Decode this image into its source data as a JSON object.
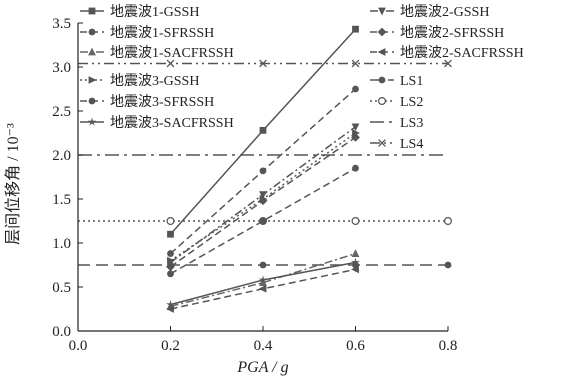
{
  "chart_data": {
    "type": "line",
    "xlabel": "PGA / g",
    "ylabel": "层间位移角 / 10⁻³",
    "xlim": [
      0.0,
      0.8
    ],
    "ylim": [
      0.0,
      3.5
    ],
    "xticks": [
      "0.0",
      "0.2",
      "0.4",
      "0.6",
      "0.8"
    ],
    "yticks": [
      "0.0",
      "0.5",
      "1.0",
      "1.5",
      "2.0",
      "2.5",
      "3.0",
      "3.5"
    ],
    "grid": false,
    "legend_position": "top",
    "series": [
      {
        "name": "地震波1-GSSH",
        "x": [
          0.2,
          0.4,
          0.6
        ],
        "y": [
          1.1,
          2.28,
          3.43
        ],
        "color": "#555555",
        "dash": "solid",
        "marker": "square"
      },
      {
        "name": "地震波1-SFRSSH",
        "x": [
          0.2,
          0.4,
          0.6
        ],
        "y": [
          0.88,
          1.82,
          2.75
        ],
        "color": "#555555",
        "dash": "dash",
        "marker": "circle"
      },
      {
        "name": "地震波1-SACFRSSH",
        "x": [
          0.2,
          0.4,
          0.6
        ],
        "y": [
          0.28,
          0.55,
          0.88
        ],
        "color": "#666666",
        "dash": "dashdot",
        "marker": "triangle"
      },
      {
        "name": "地震波2-GSSH",
        "x": [
          0.2,
          0.4,
          0.6
        ],
        "y": [
          0.78,
          1.55,
          2.32
        ],
        "color": "#555555",
        "dash": "dashdot",
        "marker": "triangle-down"
      },
      {
        "name": "地震波2-SFRSSH",
        "x": [
          0.2,
          0.4,
          0.6
        ],
        "y": [
          0.73,
          1.48,
          2.2
        ],
        "color": "#555555",
        "dash": "dash",
        "marker": "diamond"
      },
      {
        "name": "地震波2-SACFRSSH",
        "x": [
          0.2,
          0.4,
          0.6
        ],
        "y": [
          0.25,
          0.48,
          0.7
        ],
        "color": "#555555",
        "dash": "dash",
        "marker": "triangle-left"
      },
      {
        "name": "地震波3-GSSH",
        "x": [
          0.2,
          0.4,
          0.6
        ],
        "y": [
          0.8,
          1.5,
          2.25
        ],
        "color": "#555555",
        "dash": "dot",
        "marker": "triangle-right"
      },
      {
        "name": "地震波3-SFRSSH",
        "x": [
          0.2,
          0.4,
          0.6
        ],
        "y": [
          0.65,
          1.25,
          1.85
        ],
        "color": "#555555",
        "dash": "dash",
        "marker": "hexagon"
      },
      {
        "name": "地震波3-SACFRSSH",
        "x": [
          0.2,
          0.4,
          0.6
        ],
        "y": [
          0.3,
          0.58,
          0.78
        ],
        "color": "#555555",
        "dash": "solid",
        "marker": "star"
      }
    ],
    "limit_lines": [
      {
        "name": "LS1",
        "y": 0.75,
        "color": "#555555",
        "dash": "longdash",
        "marker": "circle"
      },
      {
        "name": "LS2",
        "y": 1.25,
        "color": "#555555",
        "dash": "dot",
        "marker": "open-circle"
      },
      {
        "name": "LS3",
        "y": 2.0,
        "color": "#555555",
        "dash": "longdashdot",
        "marker": "none"
      },
      {
        "name": "LS4",
        "y": 3.04,
        "color": "#555555",
        "dash": "dashdotdot",
        "marker": "x"
      }
    ]
  }
}
